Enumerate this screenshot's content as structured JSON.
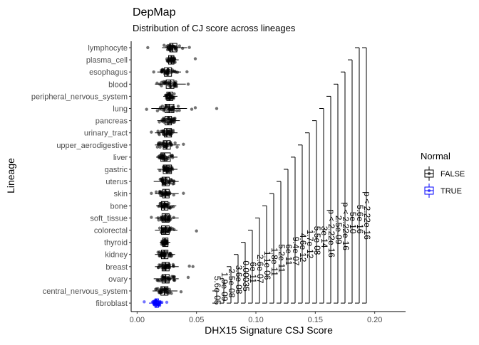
{
  "chart_data": {
    "type": "boxplot",
    "orientation": "horizontal",
    "title": "DepMap",
    "subtitle": "Distribution of CJ score across lineages",
    "xlabel": "DHX15 Signature CSJ Score",
    "ylabel": "Lineage",
    "xlim": [
      -0.005,
      0.226
    ],
    "x_ticks": [
      0.0,
      0.05,
      0.1,
      0.15,
      0.2
    ],
    "x_tick_labels": [
      "0.00",
      "0.05",
      "0.10",
      "0.15",
      "0.20"
    ],
    "grid": false,
    "legend": {
      "title": "Normal",
      "position": "right",
      "entries": [
        {
          "label": "FALSE",
          "color": "#000000"
        },
        {
          "label": "TRUE",
          "color": "#0000ff"
        }
      ]
    },
    "categories": [
      "lymphocyte",
      "plasma_cell",
      "esophagus",
      "blood",
      "peripheral_nervous_system",
      "lung",
      "pancreas",
      "urinary_tract",
      "upper_aerodigestive",
      "liver",
      "gastric",
      "uterus",
      "skin",
      "bone",
      "soft_tissue",
      "colorectal",
      "thyroid",
      "kidney",
      "breast",
      "ovary",
      "central_nervous_system",
      "fibroblast"
    ],
    "boxes": [
      {
        "name": "lymphocyte",
        "normal": false,
        "whisker_low": 0.021,
        "q1": 0.0275,
        "median": 0.03,
        "q3": 0.0335,
        "whisker_high": 0.042,
        "outliers": [
          0.009,
          0.044
        ]
      },
      {
        "name": "plasma_cell",
        "normal": false,
        "whisker_low": 0.024,
        "q1": 0.0265,
        "median": 0.029,
        "q3": 0.031,
        "whisker_high": 0.035,
        "outliers": [
          0.049
        ]
      },
      {
        "name": "esophagus",
        "normal": false,
        "whisker_low": 0.017,
        "q1": 0.023,
        "median": 0.026,
        "q3": 0.029,
        "whisker_high": 0.037,
        "outliers": [
          0.014,
          0.042
        ]
      },
      {
        "name": "blood",
        "normal": false,
        "whisker_low": 0.015,
        "q1": 0.0245,
        "median": 0.028,
        "q3": 0.031,
        "whisker_high": 0.041,
        "outliers": [
          0.043
        ]
      },
      {
        "name": "peripheral_nervous_system",
        "normal": false,
        "whisker_low": 0.022,
        "q1": 0.025,
        "median": 0.027,
        "q3": 0.03,
        "whisker_high": 0.034,
        "outliers": []
      },
      {
        "name": "lung",
        "normal": false,
        "whisker_low": 0.012,
        "q1": 0.0235,
        "median": 0.027,
        "q3": 0.031,
        "whisker_high": 0.042,
        "outliers": [
          0.008,
          0.046,
          0.049,
          0.067
        ]
      },
      {
        "name": "pancreas",
        "normal": false,
        "whisker_low": 0.017,
        "q1": 0.0235,
        "median": 0.026,
        "q3": 0.029,
        "whisker_high": 0.036,
        "outliers": []
      },
      {
        "name": "urinary_tract",
        "normal": false,
        "whisker_low": 0.015,
        "q1": 0.023,
        "median": 0.025,
        "q3": 0.029,
        "whisker_high": 0.034,
        "outliers": [
          0.012
        ]
      },
      {
        "name": "upper_aerodigestive",
        "normal": false,
        "whisker_low": 0.015,
        "q1": 0.022,
        "median": 0.025,
        "q3": 0.028,
        "whisker_high": 0.036,
        "outliers": [
          0.039
        ]
      },
      {
        "name": "liver",
        "normal": false,
        "whisker_low": 0.016,
        "q1": 0.02,
        "median": 0.023,
        "q3": 0.028,
        "whisker_high": 0.034,
        "outliers": []
      },
      {
        "name": "gastric",
        "normal": false,
        "whisker_low": 0.017,
        "q1": 0.022,
        "median": 0.025,
        "q3": 0.029,
        "whisker_high": 0.034,
        "outliers": []
      },
      {
        "name": "uterus",
        "normal": false,
        "whisker_low": 0.014,
        "q1": 0.021,
        "median": 0.024,
        "q3": 0.027,
        "whisker_high": 0.035,
        "outliers": []
      },
      {
        "name": "skin",
        "normal": false,
        "whisker_low": 0.015,
        "q1": 0.0215,
        "median": 0.024,
        "q3": 0.027,
        "whisker_high": 0.035,
        "outliers": [
          0.012,
          0.039
        ]
      },
      {
        "name": "bone",
        "normal": false,
        "whisker_low": 0.016,
        "q1": 0.0205,
        "median": 0.023,
        "q3": 0.026,
        "whisker_high": 0.033,
        "outliers": []
      },
      {
        "name": "soft_tissue",
        "normal": false,
        "whisker_low": 0.015,
        "q1": 0.021,
        "median": 0.024,
        "q3": 0.027,
        "whisker_high": 0.035,
        "outliers": [
          0.012
        ]
      },
      {
        "name": "colorectal",
        "normal": false,
        "whisker_low": 0.015,
        "q1": 0.0205,
        "median": 0.024,
        "q3": 0.027,
        "whisker_high": 0.034,
        "outliers": [
          0.05
        ]
      },
      {
        "name": "thyroid",
        "normal": false,
        "whisker_low": 0.019,
        "q1": 0.0215,
        "median": 0.0235,
        "q3": 0.026,
        "whisker_high": 0.028,
        "outliers": []
      },
      {
        "name": "kidney",
        "normal": false,
        "whisker_low": 0.015,
        "q1": 0.0205,
        "median": 0.023,
        "q3": 0.026,
        "whisker_high": 0.032,
        "outliers": []
      },
      {
        "name": "breast",
        "normal": false,
        "whisker_low": 0.015,
        "q1": 0.021,
        "median": 0.024,
        "q3": 0.027,
        "whisker_high": 0.035,
        "outliers": [
          0.044,
          0.047
        ]
      },
      {
        "name": "ovary",
        "normal": false,
        "whisker_low": 0.014,
        "q1": 0.021,
        "median": 0.024,
        "q3": 0.027,
        "whisker_high": 0.035,
        "outliers": [
          0.043
        ]
      },
      {
        "name": "central_nervous_system",
        "normal": false,
        "whisker_low": 0.013,
        "q1": 0.02,
        "median": 0.023,
        "q3": 0.026,
        "whisker_high": 0.034,
        "outliers": [
          0.037
        ]
      },
      {
        "name": "fibroblast",
        "normal": true,
        "whisker_low": 0.01,
        "q1": 0.015,
        "median": 0.016,
        "q3": 0.018,
        "whisker_high": 0.022,
        "outliers": [
          0.006,
          0.025
        ]
      }
    ],
    "comparisons": [
      {
        "group": "central_nervous_system",
        "ref": "fibroblast",
        "x": 0.067,
        "p_label": "5.6e-05"
      },
      {
        "group": "ovary",
        "ref": "fibroblast",
        "x": 0.073,
        "p_label": "1.9e-09"
      },
      {
        "group": "breast",
        "ref": "fibroblast",
        "x": 0.079,
        "p_label": "2.5e-08"
      },
      {
        "group": "kidney",
        "ref": "fibroblast",
        "x": 0.085,
        "p_label": "3.6e-08"
      },
      {
        "group": "thyroid",
        "ref": "fibroblast",
        "x": 0.091,
        "p_label": "0.00035"
      },
      {
        "group": "colorectal",
        "ref": "fibroblast",
        "x": 0.097,
        "p_label": "6e-11"
      },
      {
        "group": "soft_tissue",
        "ref": "fibroblast",
        "x": 0.103,
        "p_label": "2.6e-07"
      },
      {
        "group": "bone",
        "ref": "fibroblast",
        "x": 0.109,
        "p_label": "1.1e-06"
      },
      {
        "group": "skin",
        "ref": "fibroblast",
        "x": 0.115,
        "p_label": "1.8e-11"
      },
      {
        "group": "uterus",
        "ref": "fibroblast",
        "x": 0.121,
        "p_label": "5.2e-11"
      },
      {
        "group": "gastric",
        "ref": "fibroblast",
        "x": 0.127,
        "p_label": "6e-11"
      },
      {
        "group": "liver",
        "ref": "fibroblast",
        "x": 0.133,
        "p_label": "9.4e-07"
      },
      {
        "group": "upper_aerodigestive",
        "ref": "fibroblast",
        "x": 0.139,
        "p_label": "4.6e-12"
      },
      {
        "group": "urinary_tract",
        "ref": "fibroblast",
        "x": 0.145,
        "p_label": "1.7e-12"
      },
      {
        "group": "pancreas",
        "ref": "fibroblast",
        "x": 0.151,
        "p_label": "5.5e-08"
      },
      {
        "group": "lung",
        "ref": "fibroblast",
        "x": 0.157,
        "p_label": "3e-14"
      },
      {
        "group": "peripheral_nervous_system",
        "ref": "fibroblast",
        "x": 0.163,
        "p_label": "p < 2.22e-16"
      },
      {
        "group": "blood",
        "ref": "fibroblast",
        "x": 0.169,
        "p_label": "2.5e-09"
      },
      {
        "group": "esophagus",
        "ref": "fibroblast",
        "x": 0.175,
        "p_label": "p < 2.22e-16"
      },
      {
        "group": "plasma_cell",
        "ref": "fibroblast",
        "x": 0.181,
        "p_label": "5e-10"
      },
      {
        "group": "lymphocyte",
        "ref": "fibroblast",
        "x": 0.187,
        "p_label": "5.6e-16"
      },
      {
        "group": "lymphocyte",
        "ref": "fibroblast",
        "x": 0.193,
        "p_label": "p < 2.22e-16"
      }
    ],
    "colors": {
      "normal_false": "#000000",
      "normal_true": "#0000ff",
      "background": "#ffffff"
    }
  }
}
